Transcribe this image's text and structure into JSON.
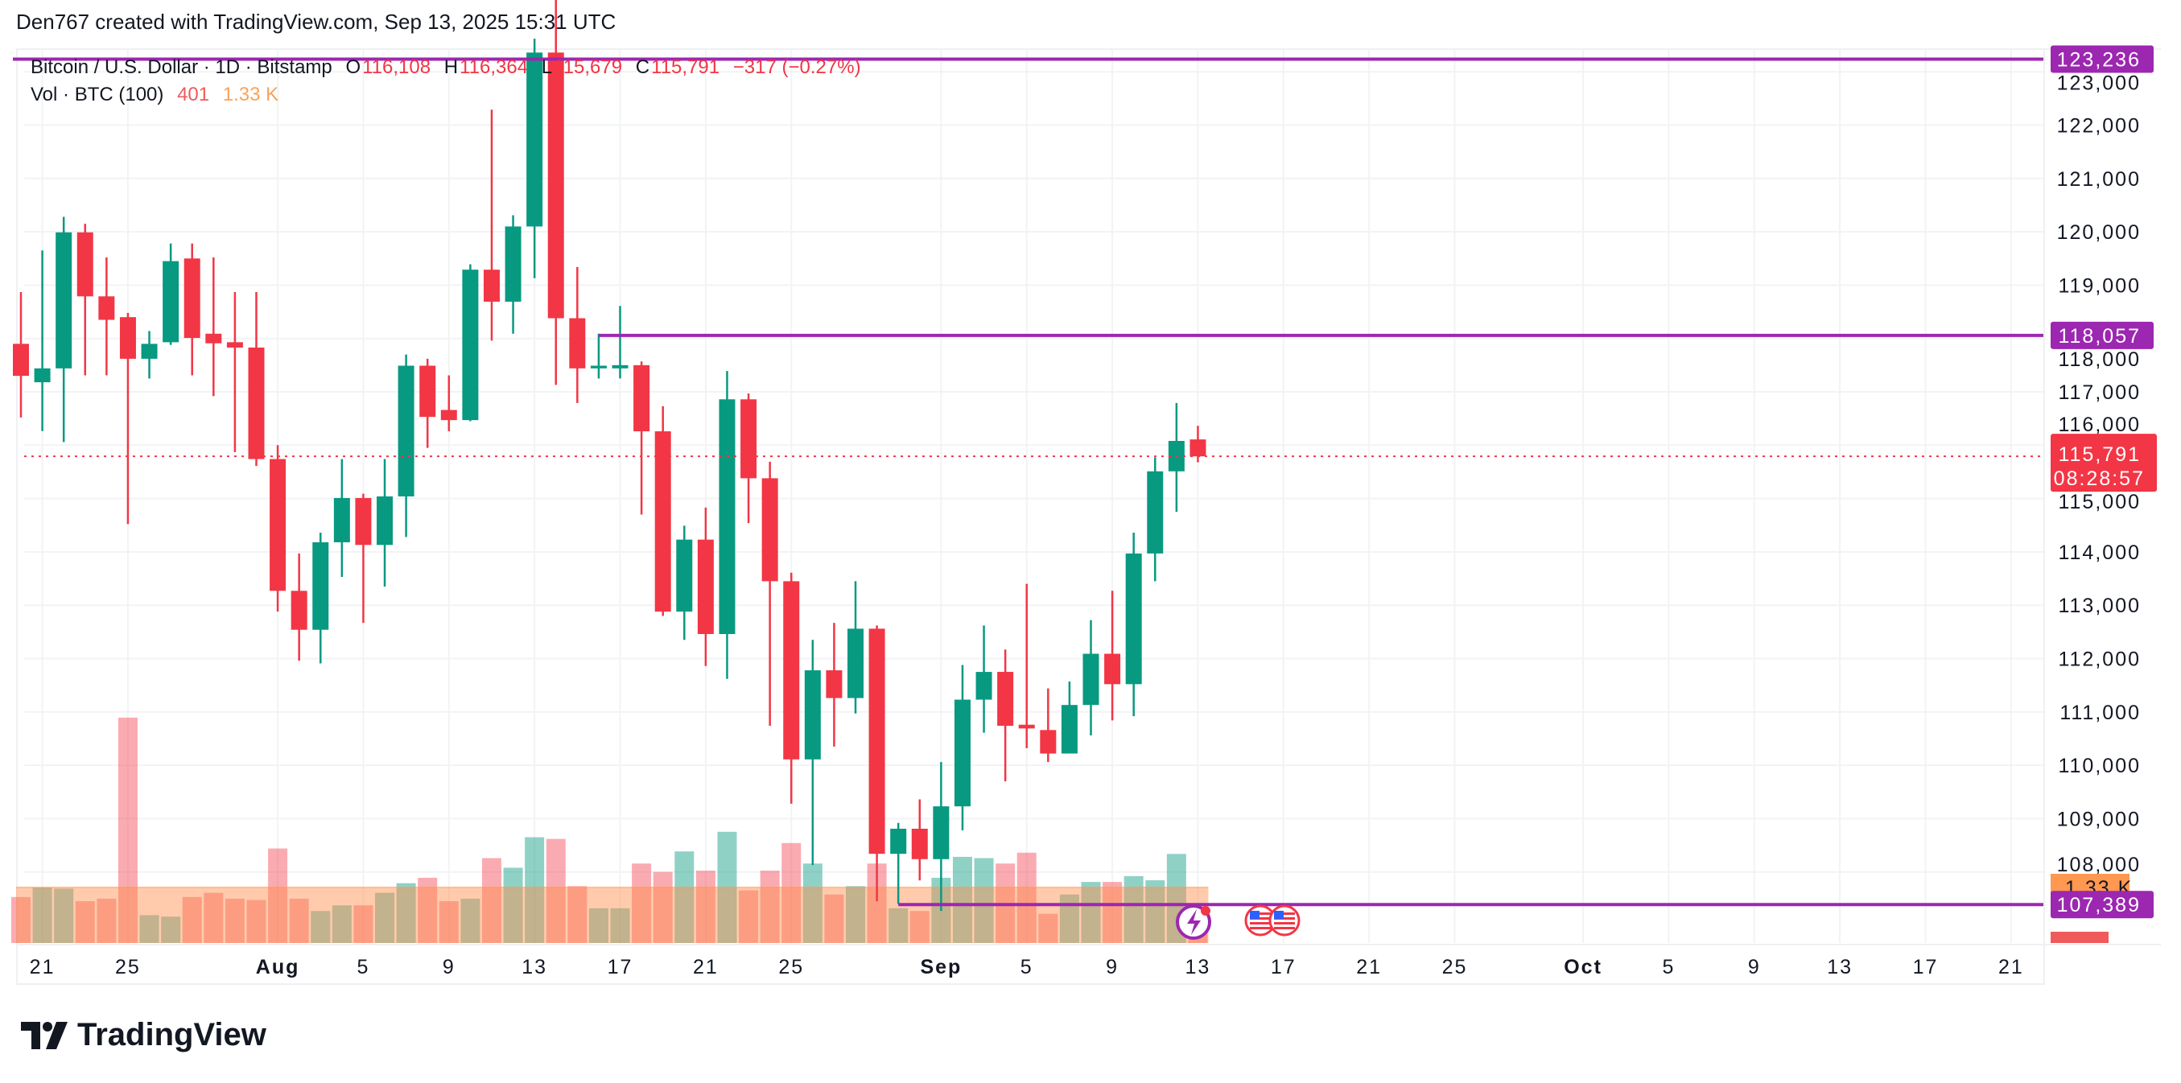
{
  "credit": "Den767 created with TradingView.com, Sep 13, 2025 15:31 UTC",
  "legend": {
    "symbol": "Bitcoin / U.S. Dollar · 1D · Bitstamp",
    "o_label": "O",
    "o_value": "116,108",
    "h_label": "H",
    "h_value": "116,364",
    "l_label": "L",
    "l_value": "115,679",
    "c_label": "C",
    "c_value": "115,791",
    "change": "−317 (−0.27%)",
    "vol_label": "Vol · BTC (100)",
    "vol_value": "401",
    "vol_ma": "1.33 K"
  },
  "logo": "TradingView",
  "colors": {
    "up": "#089981",
    "down": "#f23645",
    "line": "#9c27b0",
    "ma": "#ff9850"
  },
  "chart_data": {
    "type": "candlestick",
    "title": "Bitcoin / U.S. Dollar · 1D · Bitstamp",
    "ylim": [
      107000,
      123900
    ],
    "y_ticks": [
      "108,000",
      "109,000",
      "110,000",
      "111,000",
      "112,000",
      "113,000",
      "114,000",
      "115,000",
      "116,000",
      "117,000",
      "118,000",
      "119,000",
      "120,000",
      "121,000",
      "122,000",
      "123,000"
    ],
    "y_tick_values": [
      108000,
      109000,
      110000,
      111000,
      112000,
      113000,
      114000,
      115000,
      116000,
      117000,
      118000,
      119000,
      120000,
      121000,
      122000,
      123000
    ],
    "x_ticks": [
      {
        "label": "21",
        "day": 1
      },
      {
        "label": "25",
        "day": 5
      },
      {
        "label": "Aug",
        "day": 12,
        "bold": true
      },
      {
        "label": "5",
        "day": 16
      },
      {
        "label": "9",
        "day": 20
      },
      {
        "label": "13",
        "day": 24
      },
      {
        "label": "17",
        "day": 28
      },
      {
        "label": "21",
        "day": 32
      },
      {
        "label": "25",
        "day": 36
      },
      {
        "label": "Sep",
        "day": 43,
        "bold": true
      },
      {
        "label": "5",
        "day": 47
      },
      {
        "label": "9",
        "day": 51
      },
      {
        "label": "13",
        "day": 55
      },
      {
        "label": "17",
        "day": 59
      },
      {
        "label": "21",
        "day": 63
      },
      {
        "label": "25",
        "day": 67
      },
      {
        "label": "Oct",
        "day": 73,
        "bold": true
      },
      {
        "label": "5",
        "day": 77
      },
      {
        "label": "9",
        "day": 81
      },
      {
        "label": "13",
        "day": 85
      },
      {
        "label": "17",
        "day": 89
      },
      {
        "label": "21",
        "day": 93
      }
    ],
    "first_date": "Jul 20",
    "ohlc": [
      [
        117900,
        118870,
        116520,
        117300
      ],
      [
        117180,
        119650,
        116265,
        117440
      ],
      [
        117440,
        120280,
        116060,
        119990
      ],
      [
        119990,
        120150,
        117310,
        118790
      ],
      [
        118790,
        119520,
        117310,
        118350
      ],
      [
        118400,
        118480,
        114520,
        117620
      ],
      [
        117620,
        118140,
        117250,
        117900
      ],
      [
        117930,
        119780,
        117880,
        119450
      ],
      [
        119500,
        119780,
        117310,
        118010
      ],
      [
        118090,
        119520,
        116920,
        117910
      ],
      [
        117930,
        118870,
        115870,
        117830
      ],
      [
        117830,
        118870,
        115610,
        115740
      ],
      [
        115740,
        116000,
        112880,
        113270
      ],
      [
        113270,
        113970,
        111960,
        112540
      ],
      [
        112540,
        114360,
        111910,
        114180
      ],
      [
        114180,
        115740,
        113530,
        115010
      ],
      [
        115010,
        115090,
        112670,
        114130
      ],
      [
        114130,
        115740,
        113350,
        115040
      ],
      [
        115040,
        117700,
        114280,
        117490
      ],
      [
        117490,
        117620,
        115950,
        116530
      ],
      [
        116660,
        117310,
        116260,
        116470
      ],
      [
        116470,
        119390,
        116450,
        119290
      ],
      [
        119290,
        122290,
        117960,
        118690
      ],
      [
        118690,
        120310,
        118090,
        120100
      ],
      [
        120100,
        123620,
        119130,
        123360
      ],
      [
        123360,
        124450,
        117130,
        118380
      ],
      [
        118380,
        119340,
        116790,
        117440
      ],
      [
        117440,
        118090,
        117250,
        117490
      ],
      [
        117440,
        118610,
        117250,
        117500
      ],
      [
        117500,
        117570,
        114700,
        116260
      ],
      [
        116260,
        116730,
        112800,
        112880
      ],
      [
        112880,
        114490,
        112350,
        114230
      ],
      [
        114230,
        114830,
        111860,
        112460
      ],
      [
        112460,
        117390,
        111620,
        116860
      ],
      [
        116860,
        116970,
        114540,
        115380
      ],
      [
        115380,
        115690,
        110740,
        113450
      ],
      [
        113450,
        113610,
        109280,
        110110
      ],
      [
        110110,
        112350,
        108130,
        111780
      ],
      [
        111780,
        112670,
        110350,
        111260
      ],
      [
        111260,
        113450,
        110970,
        112560
      ],
      [
        112560,
        112620,
        107450,
        108340
      ],
      [
        108340,
        108920,
        107400,
        108810
      ],
      [
        108810,
        109360,
        107840,
        108240
      ],
      [
        108240,
        110060,
        107270,
        109230
      ],
      [
        109230,
        111880,
        108780,
        111230
      ],
      [
        111230,
        112620,
        110610,
        111750
      ],
      [
        111750,
        112170,
        109700,
        110740
      ],
      [
        110760,
        113400,
        110320,
        110690
      ],
      [
        110660,
        111440,
        110060,
        110220
      ],
      [
        110220,
        111570,
        110220,
        111130
      ],
      [
        111130,
        112720,
        110560,
        112090
      ],
      [
        112090,
        113270,
        110840,
        111520
      ],
      [
        111520,
        114360,
        110920,
        113970
      ],
      [
        113970,
        115770,
        113450,
        115510
      ],
      [
        115510,
        116790,
        114750,
        116080
      ],
      [
        116108,
        116364,
        115679,
        115791
      ]
    ],
    "volume": [
      1100,
      1330,
      1300,
      1000,
      1060,
      5390,
      665,
      630,
      1100,
      1200,
      1060,
      1030,
      2260,
      1060,
      765,
      900,
      900,
      1200,
      1430,
      1560,
      1000,
      1060,
      2030,
      1800,
      2530,
      2490,
      1360,
      830,
      830,
      1900,
      1700,
      2190,
      1730,
      2660,
      1260,
      1730,
      2390,
      1900,
      1160,
      1360,
      1900,
      830,
      765,
      1560,
      2060,
      2030,
      1900,
      2160,
      700,
      1160,
      1460,
      1460,
      1600,
      1500,
      2130,
      401
    ],
    "volume_ma": 1330,
    "hlines": [
      {
        "value": 123236,
        "label": "123,236",
        "from_day": -1
      },
      {
        "value": 118057,
        "label": "118,057",
        "from_day": 27
      },
      {
        "value": 107389,
        "label": "107,389",
        "from_day": 41
      }
    ],
    "last_price": {
      "value": 115791,
      "label": "115,791",
      "countdown": "08:28:57"
    },
    "vol_ma_badge": "1.33 K",
    "vol_badge": "401"
  }
}
